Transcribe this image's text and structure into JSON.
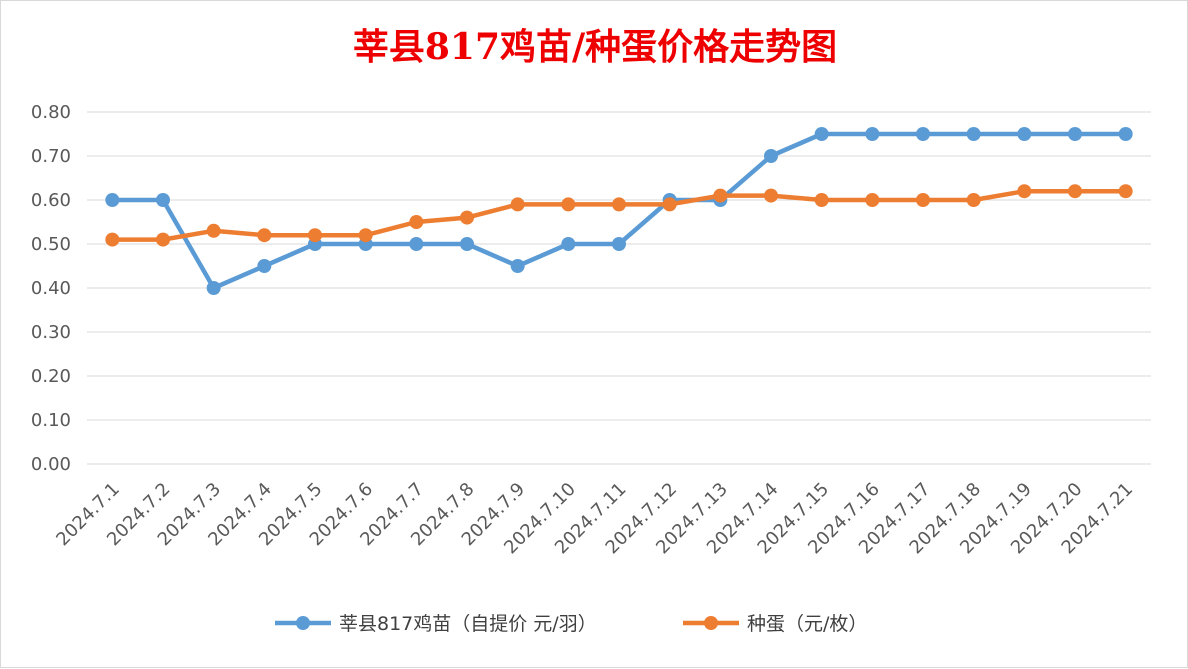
{
  "chart_data": {
    "type": "line",
    "title": "莘县817鸡苗/种蛋价格走势图",
    "xlabel": "",
    "ylabel": "",
    "ylim": [
      0,
      0.8
    ],
    "yticks": [
      "0.00",
      "0.10",
      "0.20",
      "0.30",
      "0.40",
      "0.50",
      "0.60",
      "0.70",
      "0.80"
    ],
    "grid": true,
    "legend_position": "bottom",
    "categories": [
      "2024.7.1",
      "2024.7.2",
      "2024.7.3",
      "2024.7.4",
      "2024.7.5",
      "2024.7.6",
      "2024.7.7",
      "2024.7.8",
      "2024.7.9",
      "2024.7.10",
      "2024.7.11",
      "2024.7.12",
      "2024.7.13",
      "2024.7.14",
      "2024.7.15",
      "2024.7.16",
      "2024.7.17",
      "2024.7.18",
      "2024.7.19",
      "2024.7.20",
      "2024.7.21"
    ],
    "series": [
      {
        "name": "莘县817鸡苗（自提价 元/羽）",
        "color": "#5b9bd5",
        "values": [
          0.6,
          0.6,
          0.4,
          0.45,
          0.5,
          0.5,
          0.5,
          0.5,
          0.45,
          0.5,
          0.5,
          0.6,
          0.6,
          0.7,
          0.75,
          0.75,
          0.75,
          0.75,
          0.75,
          0.75,
          0.75
        ]
      },
      {
        "name": "种蛋（元/枚）",
        "color": "#ed7d31",
        "values": [
          0.51,
          0.51,
          0.53,
          0.52,
          0.52,
          0.52,
          0.55,
          0.56,
          0.59,
          0.59,
          0.59,
          0.59,
          0.61,
          0.61,
          0.6,
          0.6,
          0.6,
          0.6,
          0.62,
          0.62,
          0.62
        ]
      }
    ]
  }
}
